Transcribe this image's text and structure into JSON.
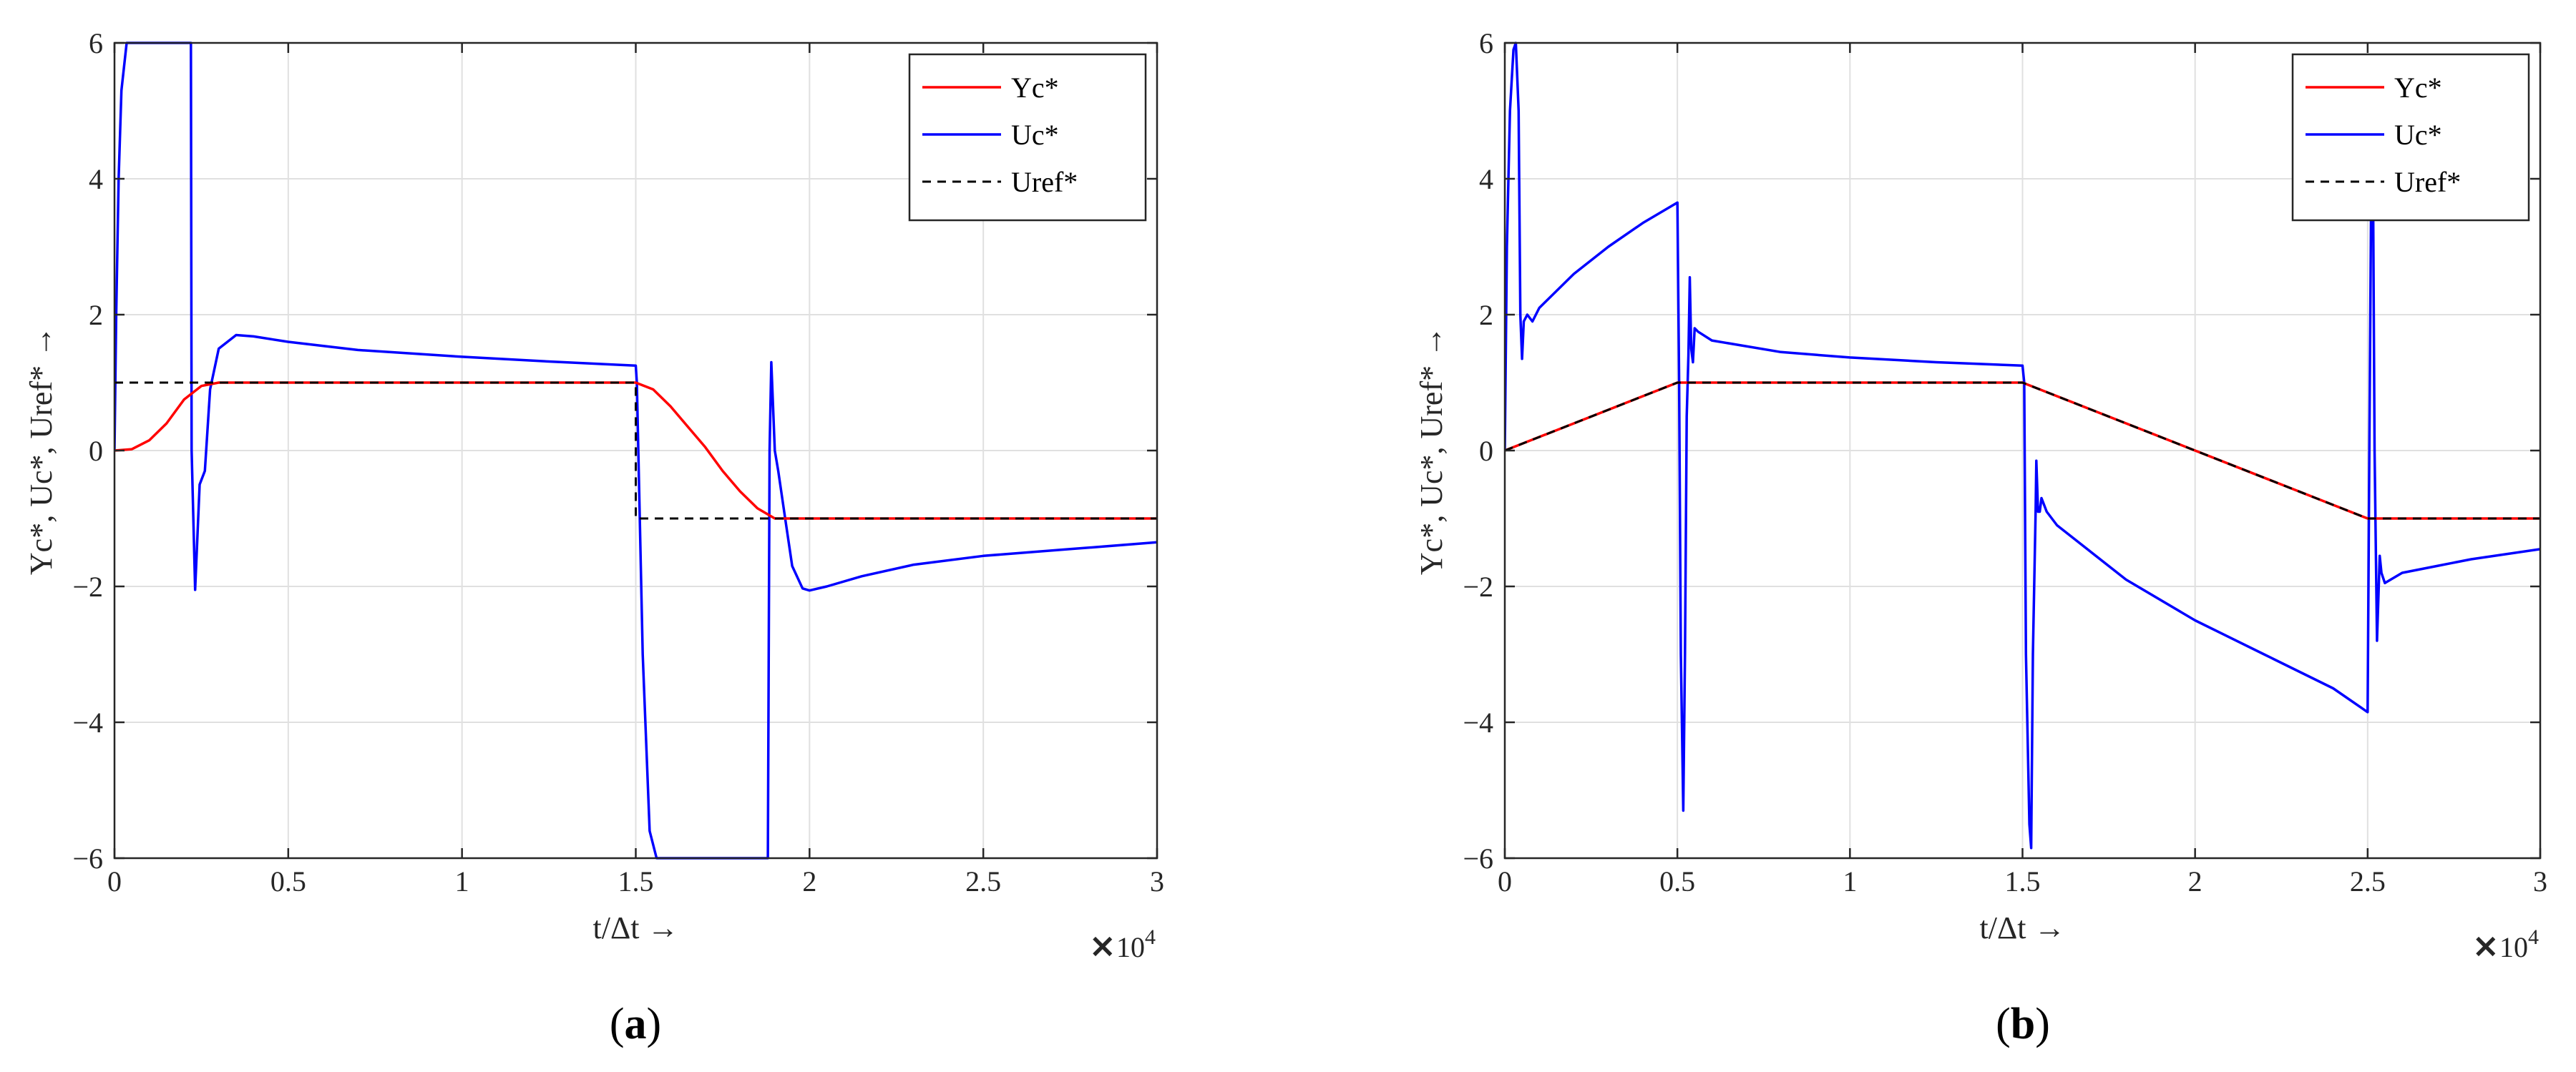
{
  "chart_data": [
    {
      "type": "line",
      "caption_letter": "a",
      "xlabel": "t/Δt →",
      "ylabel": "Yc*, Uc*, Uref* →",
      "x_multiplier_label": "×10",
      "x_multiplier_exp": "4",
      "xlim": [
        0,
        3
      ],
      "ylim": [
        -6,
        6
      ],
      "xticks": [
        0,
        0.5,
        1,
        1.5,
        2,
        2.5,
        3
      ],
      "xtick_labels": [
        "0",
        "0.5",
        "1",
        "1.5",
        "2",
        "2.5",
        "3"
      ],
      "yticks": [
        -6,
        -4,
        -2,
        0,
        2,
        4,
        6
      ],
      "ytick_labels": [
        "−6",
        "−4",
        "−2",
        "0",
        "2",
        "4",
        "6"
      ],
      "grid": true,
      "legend_placement": "top-right",
      "series": [
        {
          "name": "Yc*",
          "color": "#ff0000",
          "dash": "solid",
          "points": [
            [
              0,
              0
            ],
            [
              0.05,
              0.02
            ],
            [
              0.1,
              0.15
            ],
            [
              0.15,
              0.4
            ],
            [
              0.2,
              0.75
            ],
            [
              0.25,
              0.95
            ],
            [
              0.3,
              1.0
            ],
            [
              1.5,
              1.0
            ],
            [
              1.55,
              0.9
            ],
            [
              1.6,
              0.65
            ],
            [
              1.65,
              0.35
            ],
            [
              1.7,
              0.05
            ],
            [
              1.75,
              -0.3
            ],
            [
              1.8,
              -0.6
            ],
            [
              1.85,
              -0.85
            ],
            [
              1.9,
              -1.0
            ],
            [
              3,
              -1.0
            ]
          ]
        },
        {
          "name": "Uc*",
          "color": "#0000ff",
          "dash": "solid",
          "points": [
            [
              0,
              0
            ],
            [
              0.005,
              2
            ],
            [
              0.012,
              4
            ],
            [
              0.02,
              5.3
            ],
            [
              0.035,
              6
            ],
            [
              0.22,
              6
            ],
            [
              0.222,
              0
            ],
            [
              0.232,
              -2.05
            ],
            [
              0.245,
              -0.5
            ],
            [
              0.26,
              -0.3
            ],
            [
              0.275,
              0.9
            ],
            [
              0.3,
              1.5
            ],
            [
              0.35,
              1.7
            ],
            [
              0.4,
              1.68
            ],
            [
              0.5,
              1.6
            ],
            [
              0.7,
              1.48
            ],
            [
              1.0,
              1.38
            ],
            [
              1.25,
              1.31
            ],
            [
              1.5,
              1.25
            ],
            [
              1.503,
              1.0
            ],
            [
              1.52,
              -3
            ],
            [
              1.54,
              -5.6
            ],
            [
              1.56,
              -6
            ],
            [
              1.88,
              -6
            ],
            [
              1.885,
              0
            ],
            [
              1.89,
              1.3
            ],
            [
              1.9,
              0
            ],
            [
              1.91,
              -0.3
            ],
            [
              1.93,
              -1.0
            ],
            [
              1.95,
              -1.7
            ],
            [
              1.98,
              -2.03
            ],
            [
              2.0,
              -2.06
            ],
            [
              2.05,
              -2.0
            ],
            [
              2.15,
              -1.85
            ],
            [
              2.3,
              -1.68
            ],
            [
              2.5,
              -1.55
            ],
            [
              2.75,
              -1.45
            ],
            [
              3.0,
              -1.35
            ]
          ]
        },
        {
          "name": "Uref*",
          "color": "#000000",
          "dash": "dashed",
          "points": [
            [
              0,
              1
            ],
            [
              1.5,
              1
            ],
            [
              1.5,
              -1
            ],
            [
              3,
              -1
            ]
          ]
        }
      ]
    },
    {
      "type": "line",
      "caption_letter": "b",
      "xlabel": "t/Δt →",
      "ylabel": "Yc*, Uc*, Uref* →",
      "x_multiplier_label": "×10",
      "x_multiplier_exp": "4",
      "xlim": [
        0,
        3
      ],
      "ylim": [
        -6,
        6
      ],
      "xticks": [
        0,
        0.5,
        1,
        1.5,
        2,
        2.5,
        3
      ],
      "xtick_labels": [
        "0",
        "0.5",
        "1",
        "1.5",
        "2",
        "2.5",
        "3"
      ],
      "yticks": [
        -6,
        -4,
        -2,
        0,
        2,
        4,
        6
      ],
      "ytick_labels": [
        "−6",
        "−4",
        "−2",
        "0",
        "2",
        "4",
        "6"
      ],
      "grid": true,
      "legend_placement": "top-right",
      "series": [
        {
          "name": "Yc*",
          "color": "#ff0000",
          "dash": "solid",
          "points": [
            [
              0,
              0
            ],
            [
              0.5,
              1.0
            ],
            [
              1.5,
              1.0
            ],
            [
              2.5,
              -1.0
            ],
            [
              3,
              -1.0
            ]
          ]
        },
        {
          "name": "Uc*",
          "color": "#0000ff",
          "dash": "solid",
          "points": [
            [
              0,
              0
            ],
            [
              0.006,
              3
            ],
            [
              0.015,
              5
            ],
            [
              0.025,
              5.9
            ],
            [
              0.032,
              6
            ],
            [
              0.04,
              5
            ],
            [
              0.045,
              2
            ],
            [
              0.05,
              1.35
            ],
            [
              0.055,
              1.9
            ],
            [
              0.065,
              2.0
            ],
            [
              0.08,
              1.9
            ],
            [
              0.1,
              2.1
            ],
            [
              0.2,
              2.6
            ],
            [
              0.3,
              3.0
            ],
            [
              0.4,
              3.35
            ],
            [
              0.5,
              3.65
            ],
            [
              0.505,
              1.0
            ],
            [
              0.51,
              -3
            ],
            [
              0.517,
              -5.3
            ],
            [
              0.522,
              -3
            ],
            [
              0.527,
              0.5
            ],
            [
              0.532,
              1.4
            ],
            [
              0.536,
              2.55
            ],
            [
              0.54,
              1.5
            ],
            [
              0.545,
              1.3
            ],
            [
              0.55,
              1.8
            ],
            [
              0.56,
              1.75
            ],
            [
              0.6,
              1.62
            ],
            [
              0.8,
              1.45
            ],
            [
              1.0,
              1.37
            ],
            [
              1.25,
              1.3
            ],
            [
              1.5,
              1.25
            ],
            [
              1.505,
              1.0
            ],
            [
              1.51,
              -3
            ],
            [
              1.52,
              -5.5
            ],
            [
              1.525,
              -5.85
            ],
            [
              1.53,
              -3
            ],
            [
              1.538,
              -0.9
            ],
            [
              1.54,
              -0.15
            ],
            [
              1.545,
              -0.9
            ],
            [
              1.55,
              -0.9
            ],
            [
              1.555,
              -0.7
            ],
            [
              1.57,
              -0.9
            ],
            [
              1.6,
              -1.1
            ],
            [
              1.8,
              -1.9
            ],
            [
              2.0,
              -2.5
            ],
            [
              2.2,
              -3.0
            ],
            [
              2.4,
              -3.5
            ],
            [
              2.5,
              -3.85
            ],
            [
              2.505,
              0
            ],
            [
              2.51,
              3.7
            ],
            [
              2.515,
              4.4
            ],
            [
              2.52,
              0
            ],
            [
              2.527,
              -2.8
            ],
            [
              2.535,
              -1.55
            ],
            [
              2.54,
              -1.8
            ],
            [
              2.55,
              -1.95
            ],
            [
              2.6,
              -1.8
            ],
            [
              2.7,
              -1.7
            ],
            [
              2.8,
              -1.6
            ],
            [
              3.0,
              -1.45
            ]
          ]
        },
        {
          "name": "Uref*",
          "color": "#000000",
          "dash": "dashed",
          "points": [
            [
              0,
              0
            ],
            [
              0.5,
              1.0
            ],
            [
              1.5,
              1.0
            ],
            [
              2.5,
              -1.0
            ],
            [
              3,
              -1.0
            ]
          ]
        }
      ]
    }
  ]
}
